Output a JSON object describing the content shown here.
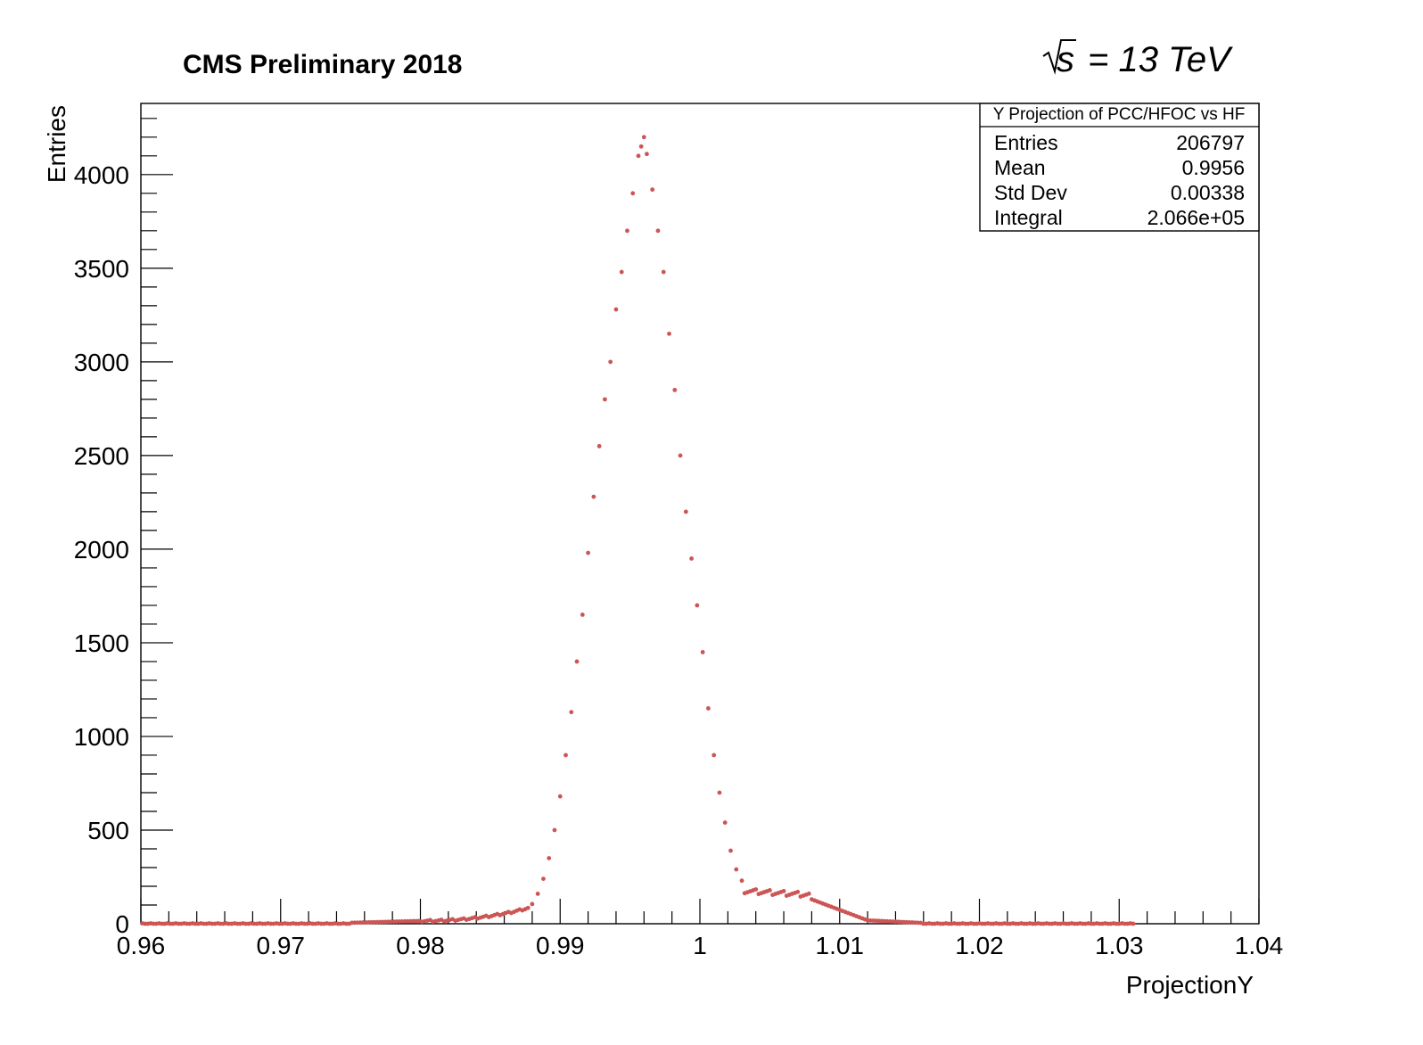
{
  "chart_data": {
    "type": "scatter",
    "title": "CMS Preliminary 2018",
    "energy_label": "= 13 TeV",
    "energy_symbol": "s",
    "xlabel": "ProjectionY",
    "ylabel": "Entries",
    "xlim": [
      0.96,
      1.04
    ],
    "ylim": [
      0,
      4380
    ],
    "x_tick_labels": [
      "0.96",
      "0.97",
      "0.98",
      "0.99",
      "1",
      "1.01",
      "1.02",
      "1.03",
      "1.04"
    ],
    "y_tick_labels": [
      "0",
      "500",
      "1000",
      "1500",
      "2000",
      "2500",
      "3000",
      "3500",
      "4000"
    ],
    "marker_color": "#cc5555",
    "grid": false,
    "stats_box": {
      "title": "Y Projection of PCC/HFOC vs HF",
      "rows": [
        {
          "label": "Entries",
          "value": "206797"
        },
        {
          "label": "Mean",
          "value": "0.9956"
        },
        {
          "label": "Std Dev",
          "value": "0.00338"
        },
        {
          "label": "Integral",
          "value": "2.066e+05"
        }
      ]
    },
    "peak_points": [
      [
        0.988,
        105
      ],
      [
        0.9884,
        160
      ],
      [
        0.9888,
        240
      ],
      [
        0.9892,
        350
      ],
      [
        0.9896,
        500
      ],
      [
        0.99,
        680
      ],
      [
        0.9904,
        900
      ],
      [
        0.9908,
        1130
      ],
      [
        0.9912,
        1400
      ],
      [
        0.9916,
        1650
      ],
      [
        0.992,
        1980
      ],
      [
        0.9924,
        2280
      ],
      [
        0.9928,
        2550
      ],
      [
        0.9932,
        2800
      ],
      [
        0.9936,
        3000
      ],
      [
        0.994,
        3280
      ],
      [
        0.9944,
        3480
      ],
      [
        0.9948,
        3700
      ],
      [
        0.9952,
        3900
      ],
      [
        0.9956,
        4100
      ],
      [
        0.9958,
        4150
      ],
      [
        0.996,
        4200
      ],
      [
        0.9962,
        4110
      ],
      [
        0.9966,
        3920
      ],
      [
        0.997,
        3700
      ],
      [
        0.9974,
        3480
      ],
      [
        0.9978,
        3150
      ],
      [
        0.9982,
        2850
      ],
      [
        0.9986,
        2500
      ],
      [
        0.999,
        2200
      ],
      [
        0.9994,
        1950
      ],
      [
        0.9998,
        1700
      ],
      [
        1.0002,
        1450
      ],
      [
        1.0006,
        1150
      ],
      [
        1.001,
        900
      ],
      [
        1.0014,
        700
      ],
      [
        1.0018,
        540
      ],
      [
        1.0022,
        390
      ],
      [
        1.0026,
        290
      ],
      [
        1.003,
        230
      ]
    ]
  }
}
